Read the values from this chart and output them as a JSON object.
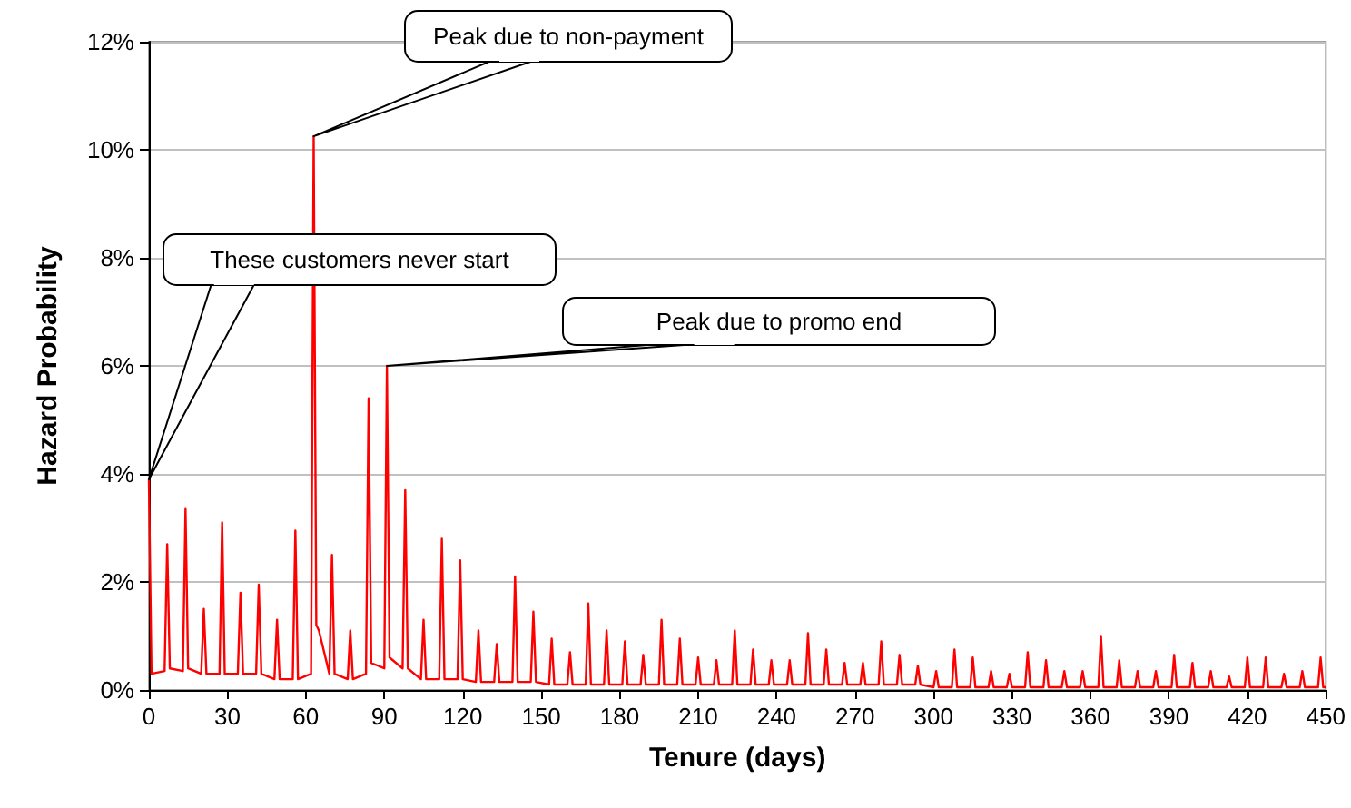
{
  "chart_data": {
    "type": "line",
    "xlabel": "Tenure (days)",
    "ylabel": "Hazard Probability",
    "x": [
      0,
      1,
      6,
      7,
      8,
      13,
      14,
      15,
      20,
      21,
      22,
      27,
      28,
      29,
      34,
      35,
      36,
      41,
      42,
      43,
      48,
      49,
      50,
      55,
      56,
      57,
      62,
      63,
      64,
      65,
      69,
      70,
      71,
      76,
      77,
      78,
      83,
      84,
      85,
      90,
      91,
      92,
      97,
      98,
      99,
      104,
      105,
      106,
      111,
      112,
      113,
      118,
      119,
      120,
      125,
      126,
      127,
      132,
      133,
      134,
      139,
      140,
      141,
      146,
      147,
      148,
      153,
      154,
      155,
      160,
      161,
      162,
      167,
      168,
      169,
      174,
      175,
      176,
      181,
      182,
      183,
      188,
      189,
      190,
      195,
      196,
      197,
      202,
      203,
      204,
      209,
      210,
      211,
      216,
      217,
      218,
      223,
      224,
      225,
      230,
      231,
      232,
      237,
      238,
      239,
      244,
      245,
      246,
      251,
      252,
      253,
      258,
      259,
      260,
      265,
      266,
      267,
      272,
      273,
      274,
      279,
      280,
      281,
      286,
      287,
      288,
      293,
      294,
      295,
      300,
      301,
      302,
      307,
      308,
      309,
      314,
      315,
      316,
      321,
      322,
      323,
      328,
      329,
      330,
      335,
      336,
      337,
      342,
      343,
      344,
      349,
      350,
      351,
      356,
      357,
      358,
      363,
      364,
      365,
      370,
      371,
      372,
      377,
      378,
      379,
      384,
      385,
      386,
      391,
      392,
      393,
      398,
      399,
      400,
      405,
      406,
      407,
      412,
      413,
      414,
      419,
      420,
      421,
      426,
      427,
      428,
      433,
      434,
      435,
      440,
      441,
      442,
      447,
      448,
      449,
      450
    ],
    "series": [
      {
        "color": "#ff0000",
        "values": [
          3.9,
          0.3,
          0.35,
          2.7,
          0.4,
          0.35,
          3.35,
          0.4,
          0.3,
          1.5,
          0.3,
          0.3,
          3.1,
          0.3,
          0.3,
          1.8,
          0.3,
          0.3,
          1.95,
          0.3,
          0.2,
          1.3,
          0.2,
          0.2,
          2.95,
          0.2,
          0.3,
          10.25,
          1.2,
          1.1,
          0.3,
          2.5,
          0.3,
          0.2,
          1.1,
          0.2,
          0.3,
          5.4,
          0.5,
          0.4,
          6.0,
          0.6,
          0.4,
          3.7,
          0.4,
          0.2,
          1.3,
          0.2,
          0.2,
          2.8,
          0.2,
          0.2,
          2.4,
          0.2,
          0.15,
          1.1,
          0.15,
          0.15,
          0.85,
          0.15,
          0.15,
          2.1,
          0.15,
          0.15,
          1.45,
          0.15,
          0.1,
          0.95,
          0.1,
          0.1,
          0.7,
          0.1,
          0.1,
          1.6,
          0.1,
          0.1,
          1.1,
          0.1,
          0.1,
          0.9,
          0.1,
          0.1,
          0.65,
          0.1,
          0.1,
          1.3,
          0.1,
          0.1,
          0.95,
          0.1,
          0.1,
          0.6,
          0.1,
          0.1,
          0.55,
          0.1,
          0.1,
          1.1,
          0.1,
          0.1,
          0.75,
          0.1,
          0.1,
          0.55,
          0.1,
          0.1,
          0.55,
          0.1,
          0.1,
          1.05,
          0.1,
          0.1,
          0.75,
          0.1,
          0.1,
          0.5,
          0.1,
          0.1,
          0.5,
          0.1,
          0.1,
          0.9,
          0.1,
          0.1,
          0.65,
          0.1,
          0.1,
          0.45,
          0.1,
          0.05,
          0.35,
          0.05,
          0.05,
          0.75,
          0.05,
          0.05,
          0.6,
          0.05,
          0.05,
          0.35,
          0.05,
          0.05,
          0.3,
          0.05,
          0.05,
          0.7,
          0.05,
          0.05,
          0.55,
          0.05,
          0.05,
          0.35,
          0.05,
          0.05,
          0.35,
          0.05,
          0.05,
          1.0,
          0.05,
          0.05,
          0.55,
          0.05,
          0.05,
          0.35,
          0.05,
          0.05,
          0.35,
          0.05,
          0.05,
          0.65,
          0.05,
          0.05,
          0.5,
          0.05,
          0.05,
          0.35,
          0.05,
          0.05,
          0.25,
          0.05,
          0.05,
          0.6,
          0.05,
          0.05,
          0.6,
          0.05,
          0.05,
          0.3,
          0.05,
          0.05,
          0.35,
          0.05,
          0.05,
          0.6,
          0.05,
          0.05
        ]
      }
    ],
    "xlim": [
      0,
      450
    ],
    "xticks": [
      0,
      30,
      60,
      90,
      120,
      150,
      180,
      210,
      240,
      270,
      300,
      330,
      360,
      390,
      420,
      450
    ],
    "ylim": [
      0,
      12
    ],
    "yticks": [
      {
        "value": 0,
        "label": "0%"
      },
      {
        "value": 2,
        "label": "2%"
      },
      {
        "value": 4,
        "label": "4%"
      },
      {
        "value": 6,
        "label": "6%"
      },
      {
        "value": 8,
        "label": "8%"
      },
      {
        "value": 10,
        "label": "10%"
      },
      {
        "value": 12,
        "label": "12%"
      }
    ],
    "grid": "y",
    "marker": "none",
    "line_style": "solid",
    "annotations": [
      "These customers never start",
      {
        "text": "Peak due to non-payment",
        "x": 63,
        "y": 10.25
      },
      {
        "text": "Peak due to promo end",
        "x": 91,
        "y": 6.0
      }
    ]
  }
}
